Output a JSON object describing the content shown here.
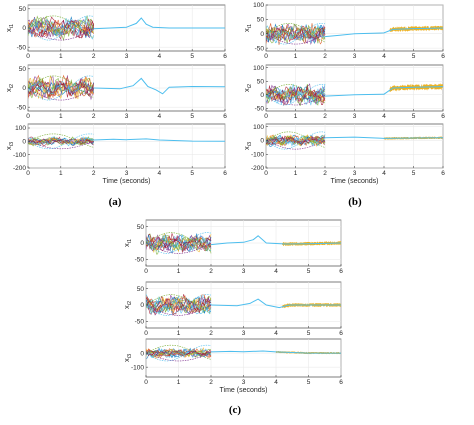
{
  "chart_data": [
    {
      "type": "line",
      "panel_caption": "(a)",
      "xlabel": "Time (seconds)",
      "x_ticks": [
        "0",
        "1",
        "2",
        "3",
        "4",
        "5",
        "6"
      ],
      "xlim": [
        0,
        6
      ],
      "subplots": [
        {
          "ylabel_main": "x",
          "ylabel_sub": "i1",
          "ylim": [
            -60,
            60
          ],
          "y_ticks": [
            {
              "v": 50,
              "t": "50"
            },
            {
              "v": 0,
              "t": "0"
            },
            {
              "v": -50,
              "t": "-50"
            }
          ],
          "amp": 35,
          "post": [
            {
              "t": 2.0,
              "y": -2
            },
            {
              "t": 2.5,
              "y": 0
            },
            {
              "t": 3.0,
              "y": 2
            },
            {
              "t": 3.3,
              "y": 12
            },
            {
              "t": 3.45,
              "y": 26
            },
            {
              "t": 3.6,
              "y": 10
            },
            {
              "t": 3.8,
              "y": 2
            },
            {
              "t": 4.3,
              "y": 0
            },
            {
              "t": 6.0,
              "y": 0
            }
          ],
          "band": null
        },
        {
          "ylabel_main": "x",
          "ylabel_sub": "i2",
          "ylim": [
            -60,
            60
          ],
          "y_ticks": [
            {
              "v": 50,
              "t": "50"
            },
            {
              "v": 0,
              "t": "0"
            },
            {
              "v": -50,
              "t": "-50"
            }
          ],
          "amp": 35,
          "post": [
            {
              "t": 2.0,
              "y": 0
            },
            {
              "t": 2.8,
              "y": -2
            },
            {
              "t": 3.2,
              "y": 6
            },
            {
              "t": 3.45,
              "y": 25
            },
            {
              "t": 3.65,
              "y": 4
            },
            {
              "t": 3.9,
              "y": -5
            },
            {
              "t": 4.1,
              "y": -15
            },
            {
              "t": 4.3,
              "y": 2
            },
            {
              "t": 5.0,
              "y": 4
            },
            {
              "t": 6.0,
              "y": 3
            }
          ],
          "band": null
        },
        {
          "ylabel_main": "x",
          "ylabel_sub": "i3",
          "ylim": [
            -200,
            130
          ],
          "y_ticks": [
            {
              "v": 100,
              "t": "100"
            },
            {
              "v": 0,
              "t": "0"
            },
            {
              "v": -100,
              "t": "-100"
            },
            {
              "v": -200,
              "t": "-200"
            }
          ],
          "amp": 40,
          "post": [
            {
              "t": 2.0,
              "y": 10
            },
            {
              "t": 2.6,
              "y": 15
            },
            {
              "t": 3.0,
              "y": 12
            },
            {
              "t": 3.6,
              "y": 18
            },
            {
              "t": 4.0,
              "y": 10
            },
            {
              "t": 5.0,
              "y": 2
            },
            {
              "t": 6.0,
              "y": 0
            }
          ],
          "band": null
        }
      ]
    },
    {
      "type": "line",
      "panel_caption": "(b)",
      "xlabel": "Time (seconds)",
      "x_ticks": [
        "0",
        "1",
        "2",
        "3",
        "4",
        "5",
        "6"
      ],
      "xlim": [
        0,
        6
      ],
      "subplots": [
        {
          "ylabel_main": "x",
          "ylabel_sub": "i1",
          "ylim": [
            -60,
            100
          ],
          "y_ticks": [
            {
              "v": 100,
              "t": "100"
            },
            {
              "v": 50,
              "t": "50"
            },
            {
              "v": 0,
              "t": "0"
            },
            {
              "v": -50,
              "t": "-50"
            }
          ],
          "amp": 40,
          "post": [
            {
              "t": 2.0,
              "y": -10
            },
            {
              "t": 2.5,
              "y": -5
            },
            {
              "t": 3.0,
              "y": 0
            },
            {
              "t": 4.0,
              "y": 3
            },
            {
              "t": 4.3,
              "y": 15
            },
            {
              "t": 5.0,
              "y": 18
            },
            {
              "t": 6.0,
              "y": 20
            }
          ],
          "band": {
            "from": 4.2,
            "to": 6.0,
            "half": 6
          }
        },
        {
          "ylabel_main": "x",
          "ylabel_sub": "i2",
          "ylim": [
            -60,
            110
          ],
          "y_ticks": [
            {
              "v": 100,
              "t": "100"
            },
            {
              "v": 50,
              "t": "50"
            },
            {
              "v": 0,
              "t": "0"
            },
            {
              "v": -50,
              "t": "-50"
            }
          ],
          "amp": 42,
          "post": [
            {
              "t": 2.0,
              "y": -5
            },
            {
              "t": 3.0,
              "y": 0
            },
            {
              "t": 4.0,
              "y": 2
            },
            {
              "t": 4.3,
              "y": 25
            },
            {
              "t": 5.0,
              "y": 28
            },
            {
              "t": 6.0,
              "y": 30
            }
          ],
          "band": {
            "from": 4.2,
            "to": 6.0,
            "half": 8
          }
        },
        {
          "ylabel_main": "x",
          "ylabel_sub": "i3",
          "ylim": [
            -200,
            120
          ],
          "y_ticks": [
            {
              "v": 100,
              "t": "100"
            },
            {
              "v": 0,
              "t": "0"
            },
            {
              "v": -100,
              "t": "-100"
            },
            {
              "v": -200,
              "t": "-200"
            }
          ],
          "amp": 45,
          "post": [
            {
              "t": 2.0,
              "y": 20
            },
            {
              "t": 3.0,
              "y": 25
            },
            {
              "t": 4.0,
              "y": 15
            },
            {
              "t": 5.0,
              "y": 18
            },
            {
              "t": 6.0,
              "y": 20
            }
          ],
          "band": {
            "from": 4.0,
            "to": 6.0,
            "half": 5
          }
        }
      ]
    },
    {
      "type": "line",
      "panel_caption": "(c)",
      "xlabel": "Time (seconds)",
      "x_ticks": [
        "0",
        "1",
        "2",
        "3",
        "4",
        "5",
        "6"
      ],
      "xlim": [
        0,
        6
      ],
      "subplots": [
        {
          "ylabel_main": "x",
          "ylabel_sub": "i1",
          "ylim": [
            -70,
            70
          ],
          "y_ticks": [
            {
              "v": 50,
              "t": "50"
            },
            {
              "v": 0,
              "t": "0"
            },
            {
              "v": -50,
              "t": "-50"
            }
          ],
          "amp": 35,
          "post": [
            {
              "t": 2.0,
              "y": -5
            },
            {
              "t": 2.5,
              "y": 0
            },
            {
              "t": 3.0,
              "y": 2
            },
            {
              "t": 3.3,
              "y": 10
            },
            {
              "t": 3.45,
              "y": 22
            },
            {
              "t": 3.7,
              "y": 0
            },
            {
              "t": 4.3,
              "y": -3
            },
            {
              "t": 5.0,
              "y": -2
            },
            {
              "t": 6.0,
              "y": 0
            }
          ],
          "band": {
            "from": 4.2,
            "to": 6.0,
            "half": 4
          }
        },
        {
          "ylabel_main": "x",
          "ylabel_sub": "i2",
          "ylim": [
            -70,
            70
          ],
          "y_ticks": [
            {
              "v": 50,
              "t": "50"
            },
            {
              "v": 0,
              "t": "0"
            },
            {
              "v": -50,
              "t": "-50"
            }
          ],
          "amp": 35,
          "post": [
            {
              "t": 2.0,
              "y": 0
            },
            {
              "t": 2.8,
              "y": -2
            },
            {
              "t": 3.2,
              "y": 5
            },
            {
              "t": 3.45,
              "y": 18
            },
            {
              "t": 3.7,
              "y": 0
            },
            {
              "t": 4.1,
              "y": -8
            },
            {
              "t": 4.4,
              "y": 0
            },
            {
              "t": 6.0,
              "y": 0
            }
          ],
          "band": {
            "from": 4.2,
            "to": 6.0,
            "half": 4
          }
        },
        {
          "ylabel_main": "x",
          "ylabel_sub": "i3",
          "ylim": [
            -170,
            100
          ],
          "y_ticks": [
            {
              "v": 0,
              "t": "0"
            },
            {
              "v": -100,
              "t": "-100"
            }
          ],
          "amp": 40,
          "post": [
            {
              "t": 2.0,
              "y": 8
            },
            {
              "t": 2.6,
              "y": 12
            },
            {
              "t": 3.0,
              "y": 10
            },
            {
              "t": 3.6,
              "y": 15
            },
            {
              "t": 4.0,
              "y": 8
            },
            {
              "t": 5.0,
              "y": 0
            },
            {
              "t": 6.0,
              "y": 0
            }
          ],
          "band": {
            "from": 4.0,
            "to": 6.0,
            "half": 4
          }
        }
      ]
    }
  ],
  "series_colors": [
    "#0072BD",
    "#D95319",
    "#EDB120",
    "#7E2F8E",
    "#77AC30",
    "#4DBEEE",
    "#A2142F"
  ],
  "final_series_color": "#4DBEEE",
  "band_color": "#EDB120"
}
